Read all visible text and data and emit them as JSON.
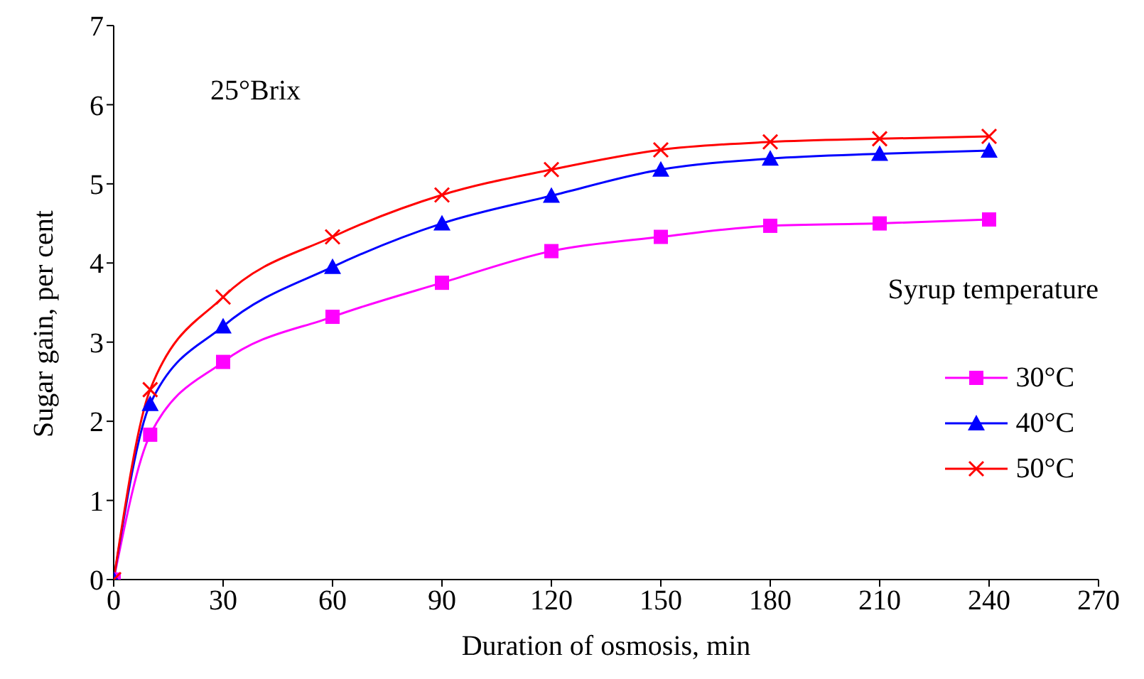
{
  "chart_data": {
    "type": "line",
    "xlabel": "Duration of osmosis,  min",
    "ylabel": "Sugar  gain, per cent",
    "legend_title": "Syrup temperature",
    "annotations": [
      "25°Brix"
    ],
    "x": [
      0,
      10,
      30,
      60,
      90,
      120,
      150,
      180,
      210,
      240
    ],
    "series": [
      {
        "name": "30°C",
        "color": "#ff00ff",
        "marker": "square",
        "values": [
          0,
          1.83,
          2.75,
          3.32,
          3.75,
          4.15,
          4.33,
          4.47,
          4.5,
          4.55
        ]
      },
      {
        "name": "40°C",
        "color": "#0000ff",
        "marker": "triangle",
        "values": [
          0,
          2.22,
          3.2,
          3.95,
          4.5,
          4.85,
          5.18,
          5.32,
          5.38,
          5.42
        ]
      },
      {
        "name": "50°C",
        "color": "#ff0000",
        "marker": "cross",
        "values": [
          0,
          2.4,
          3.57,
          4.33,
          4.86,
          5.18,
          5.43,
          5.53,
          5.57,
          5.6
        ]
      }
    ],
    "xlim": [
      0,
      270
    ],
    "xticks": [
      0,
      30,
      60,
      90,
      120,
      150,
      180,
      210,
      240,
      270
    ],
    "ylim": [
      0,
      7
    ],
    "yticks": [
      0,
      1,
      2,
      3,
      4,
      5,
      6,
      7
    ],
    "grid": false,
    "legend": "right",
    "line_style": "solid"
  }
}
